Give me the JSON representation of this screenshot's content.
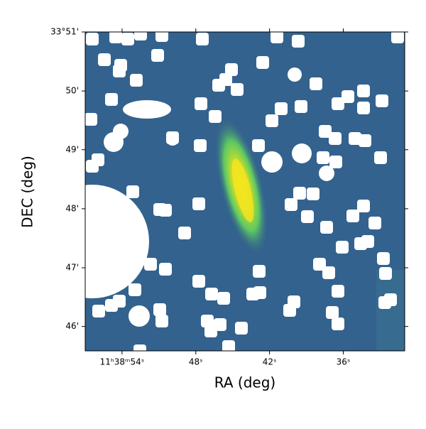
{
  "chart_data": {
    "type": "image",
    "x_label": "RA (deg)",
    "y_label": "DEC (deg)",
    "xlim": [
      57.0,
      31.0
    ],
    "xticks": [
      {
        "value": 54,
        "label": "11ʰ38ᵐ54ˢ"
      },
      {
        "value": 48,
        "label": "48ˢ"
      },
      {
        "value": 42,
        "label": "42ˢ"
      },
      {
        "value": 36,
        "label": "36ˢ"
      }
    ],
    "ylim": [
      33.7598,
      33.85
    ],
    "yticks": [
      {
        "value": 33.85,
        "label": "33°51'"
      },
      {
        "value": 33.8333,
        "label": "50'"
      },
      {
        "value": 33.8167,
        "label": "49'"
      },
      {
        "value": 33.8,
        "label": "48'"
      },
      {
        "value": 33.7833,
        "label": "47'"
      },
      {
        "value": 33.7667,
        "label": "46'"
      }
    ]
  }
}
